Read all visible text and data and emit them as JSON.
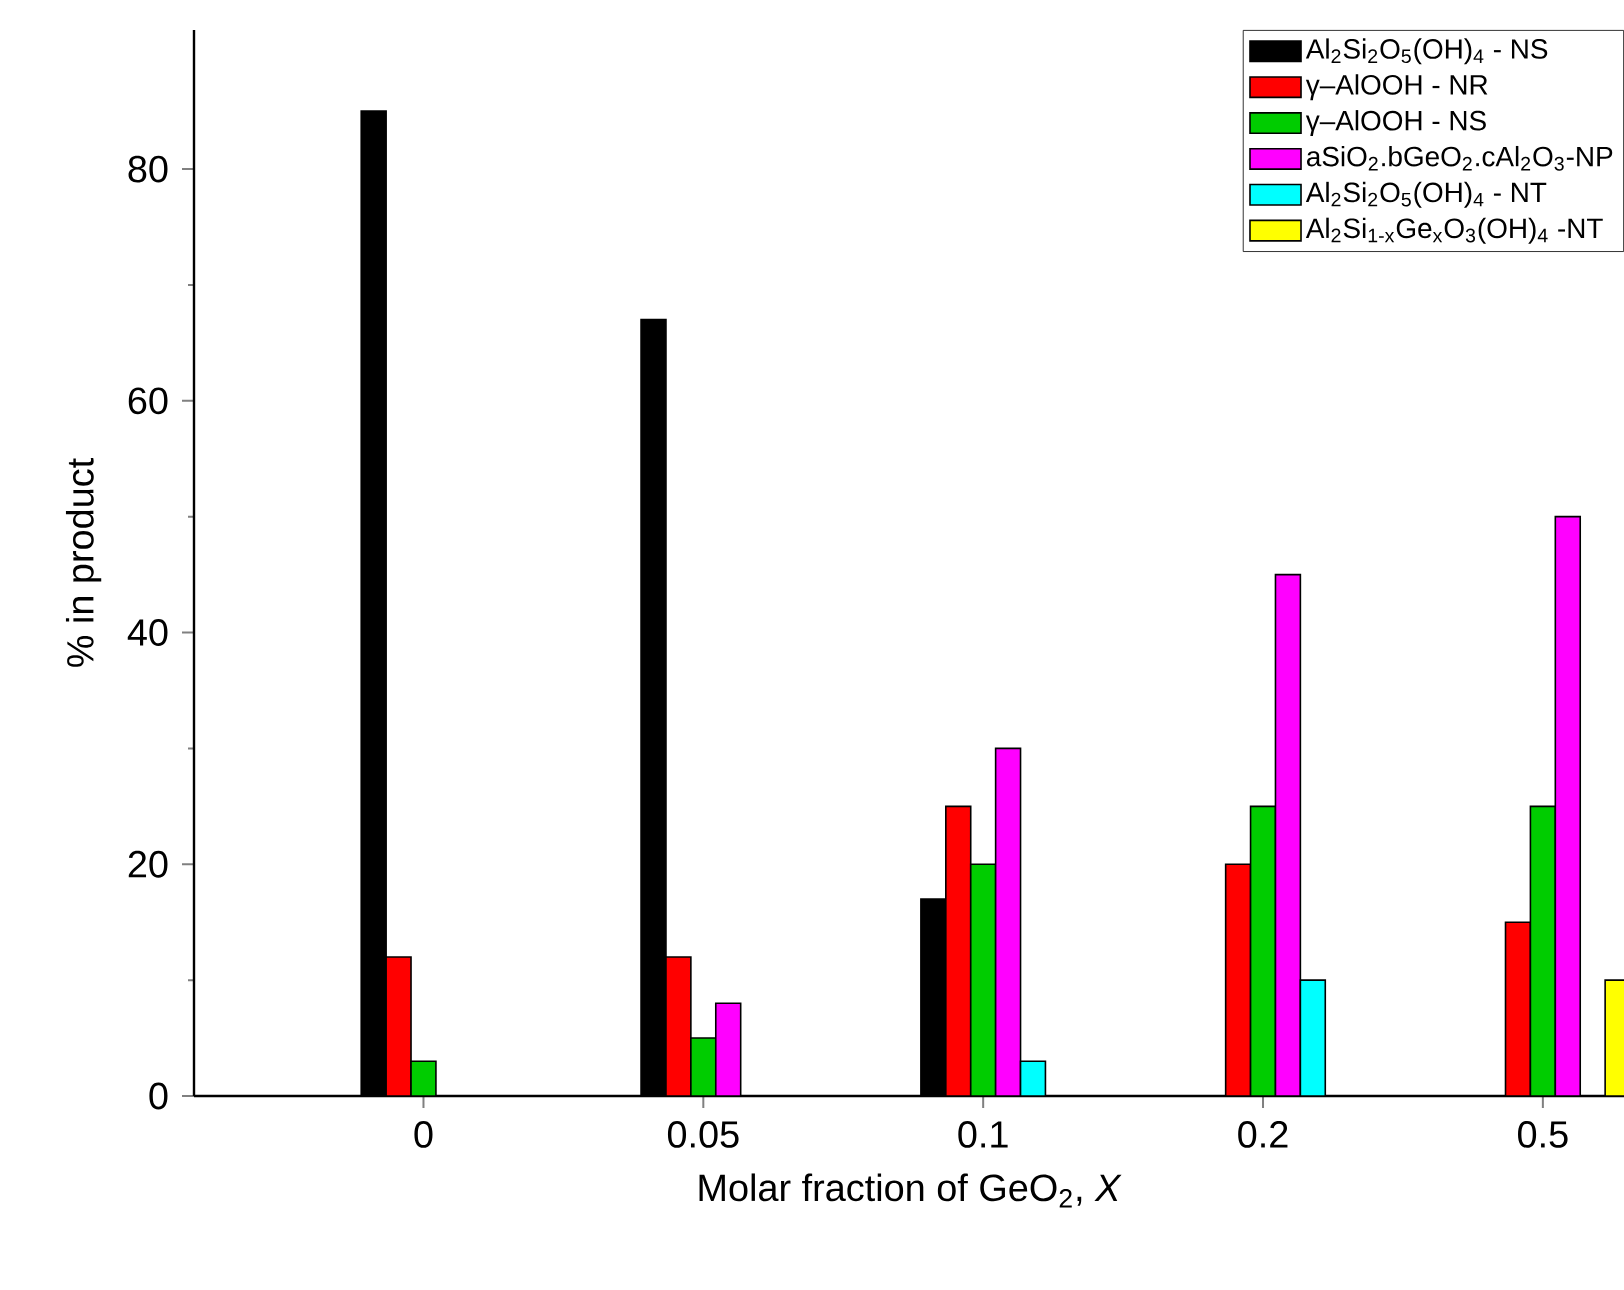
{
  "chart_data": {
    "type": "bar",
    "xlabel": "Molar fraction of GeO$_{2}$, *X*",
    "ylabel": "% in product",
    "categories": [
      "0",
      "0.05",
      "0.1",
      "0.2",
      "0.5"
    ],
    "ylim": [
      0,
      92
    ],
    "yticks": [
      0,
      20,
      40,
      60,
      80
    ],
    "legend": "top right",
    "series": [
      {
        "name": "Al$_{2}$Si$_{2}$O$_{5}$(OH)$_{4}$ - NS",
        "color": "#000000",
        "values": [
          85,
          67,
          17,
          null,
          null
        ]
      },
      {
        "name": "γ–AlOOH - NR",
        "color": "#ff0000",
        "values": [
          12,
          12,
          25,
          20,
          15
        ]
      },
      {
        "name": "γ–AlOOH - NS",
        "color": "#00cc00",
        "values": [
          3,
          5,
          20,
          25,
          25
        ]
      },
      {
        "name": "aSiO$_{2}$.bGeO$_{2}$.cAl$_{2}$O$_{3}$-NP",
        "color": "#ff00ff",
        "values": [
          null,
          8,
          30,
          45,
          50
        ]
      },
      {
        "name": "Al$_{2}$Si$_{2}$O$_{5}$(OH)$_{4}$ - NT",
        "color": "#00ffff",
        "values": [
          null,
          null,
          3,
          10,
          null
        ]
      },
      {
        "name": "Al$_{2}$Si$_{1-x}$Ge$_{x}$O$_{3}$(OH)$_{4}$ -NT",
        "color": "#ffff00",
        "values": [
          null,
          null,
          null,
          null,
          10
        ]
      }
    ]
  }
}
